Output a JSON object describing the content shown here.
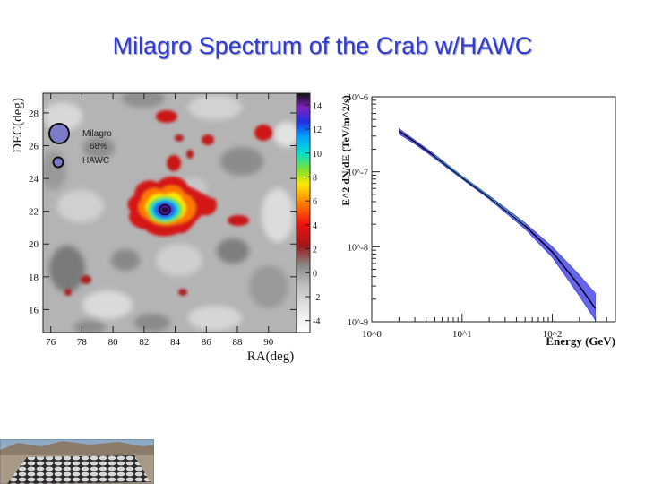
{
  "slide": {
    "title": "Milagro Spectrum of the Crab w/HAWC"
  },
  "colors": {
    "title": "#2f3bd6",
    "band": "#4a4ae8",
    "legend_fill": "#7b7bc8"
  },
  "chart_data": [
    {
      "type": "heatmap",
      "xlabel": "RA(deg)",
      "ylabel": "DEC(deg)",
      "x_ticks": [
        "76",
        "78",
        "80",
        "82",
        "84",
        "86",
        "88",
        "90"
      ],
      "y_ticks": [
        "16",
        "18",
        "20",
        "22",
        "24",
        "26",
        "28"
      ],
      "xlim": [
        75.5,
        91.8
      ],
      "ylim": [
        14.6,
        29.2
      ],
      "colorbar": {
        "ticks": [
          "14",
          "12",
          "10",
          "8",
          "6",
          "4",
          "2",
          "0",
          "-2",
          "-4"
        ],
        "range": [
          -5,
          15
        ]
      },
      "source_peak": {
        "ra": 83.6,
        "dec": 22.0
      },
      "legend": [
        {
          "label": "Milagro",
          "sublabel": "68%"
        },
        {
          "label": "HAWC"
        }
      ]
    },
    {
      "type": "line",
      "xlabel": "Energy (GeV)",
      "ylabel": "E^2 dN/dE (TeV/m^2/s)",
      "x_scale": "log",
      "y_scale": "log",
      "x_ticks": [
        "10^0",
        "10^1",
        "10^2"
      ],
      "y_ticks": [
        "10^-6",
        "10^-7",
        "10^-8",
        "10^-9"
      ],
      "xlim": [
        1,
        500
      ],
      "ylim": [
        1e-09,
        1e-06
      ],
      "series": [
        {
          "kind": "band",
          "x": [
            2,
            3,
            5,
            10,
            20,
            50,
            100,
            200,
            300
          ],
          "y_low": [
            3.2e-07,
            2.35e-07,
            1.5e-07,
            8e-08,
            4.3e-08,
            1.72e-08,
            7.2e-09,
            2.2e-09,
            1.05e-09
          ],
          "y_high": [
            3.8e-07,
            2.65e-07,
            1.7e-07,
            8.8e-08,
            4.8e-08,
            2.08e-08,
            1e-08,
            4.2e-09,
            2.4e-09
          ]
        },
        {
          "kind": "line",
          "x": [
            2,
            3,
            5,
            10,
            20,
            50,
            100,
            200,
            300
          ],
          "y": [
            3.5e-07,
            2.5e-07,
            1.6e-07,
            8.4e-08,
            4.55e-08,
            1.9e-08,
            8.5e-09,
            3e-09,
            1.5e-09
          ]
        }
      ]
    }
  ],
  "photo": {
    "description_icon": "hawc-site-photo"
  }
}
